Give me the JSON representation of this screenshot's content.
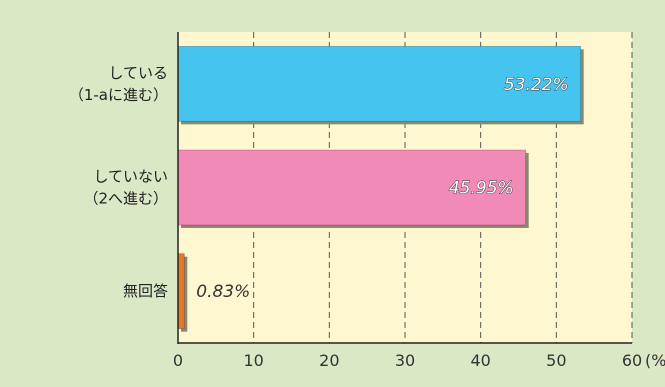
{
  "chart_data": {
    "type": "bar",
    "orientation": "horizontal",
    "categories": [
      [
        "している",
        "（1-aに進む）"
      ],
      [
        "していない",
        "（2へ進む）"
      ],
      [
        "無回答"
      ]
    ],
    "values": [
      53.22,
      45.95,
      0.83
    ],
    "value_labels": [
      "53.22%",
      "45.95%",
      "0.83%"
    ],
    "colors": [
      "#45c4ef",
      "#f28ab8",
      "#e8792a"
    ],
    "plot_background": "#fff7cf",
    "page_background": "#dbe8c6",
    "xlim": [
      0,
      60
    ],
    "xticks": [
      "0",
      "10",
      "20",
      "30",
      "40",
      "50",
      "60"
    ],
    "x_unit": "(%)",
    "grid": "vertical dashed"
  }
}
